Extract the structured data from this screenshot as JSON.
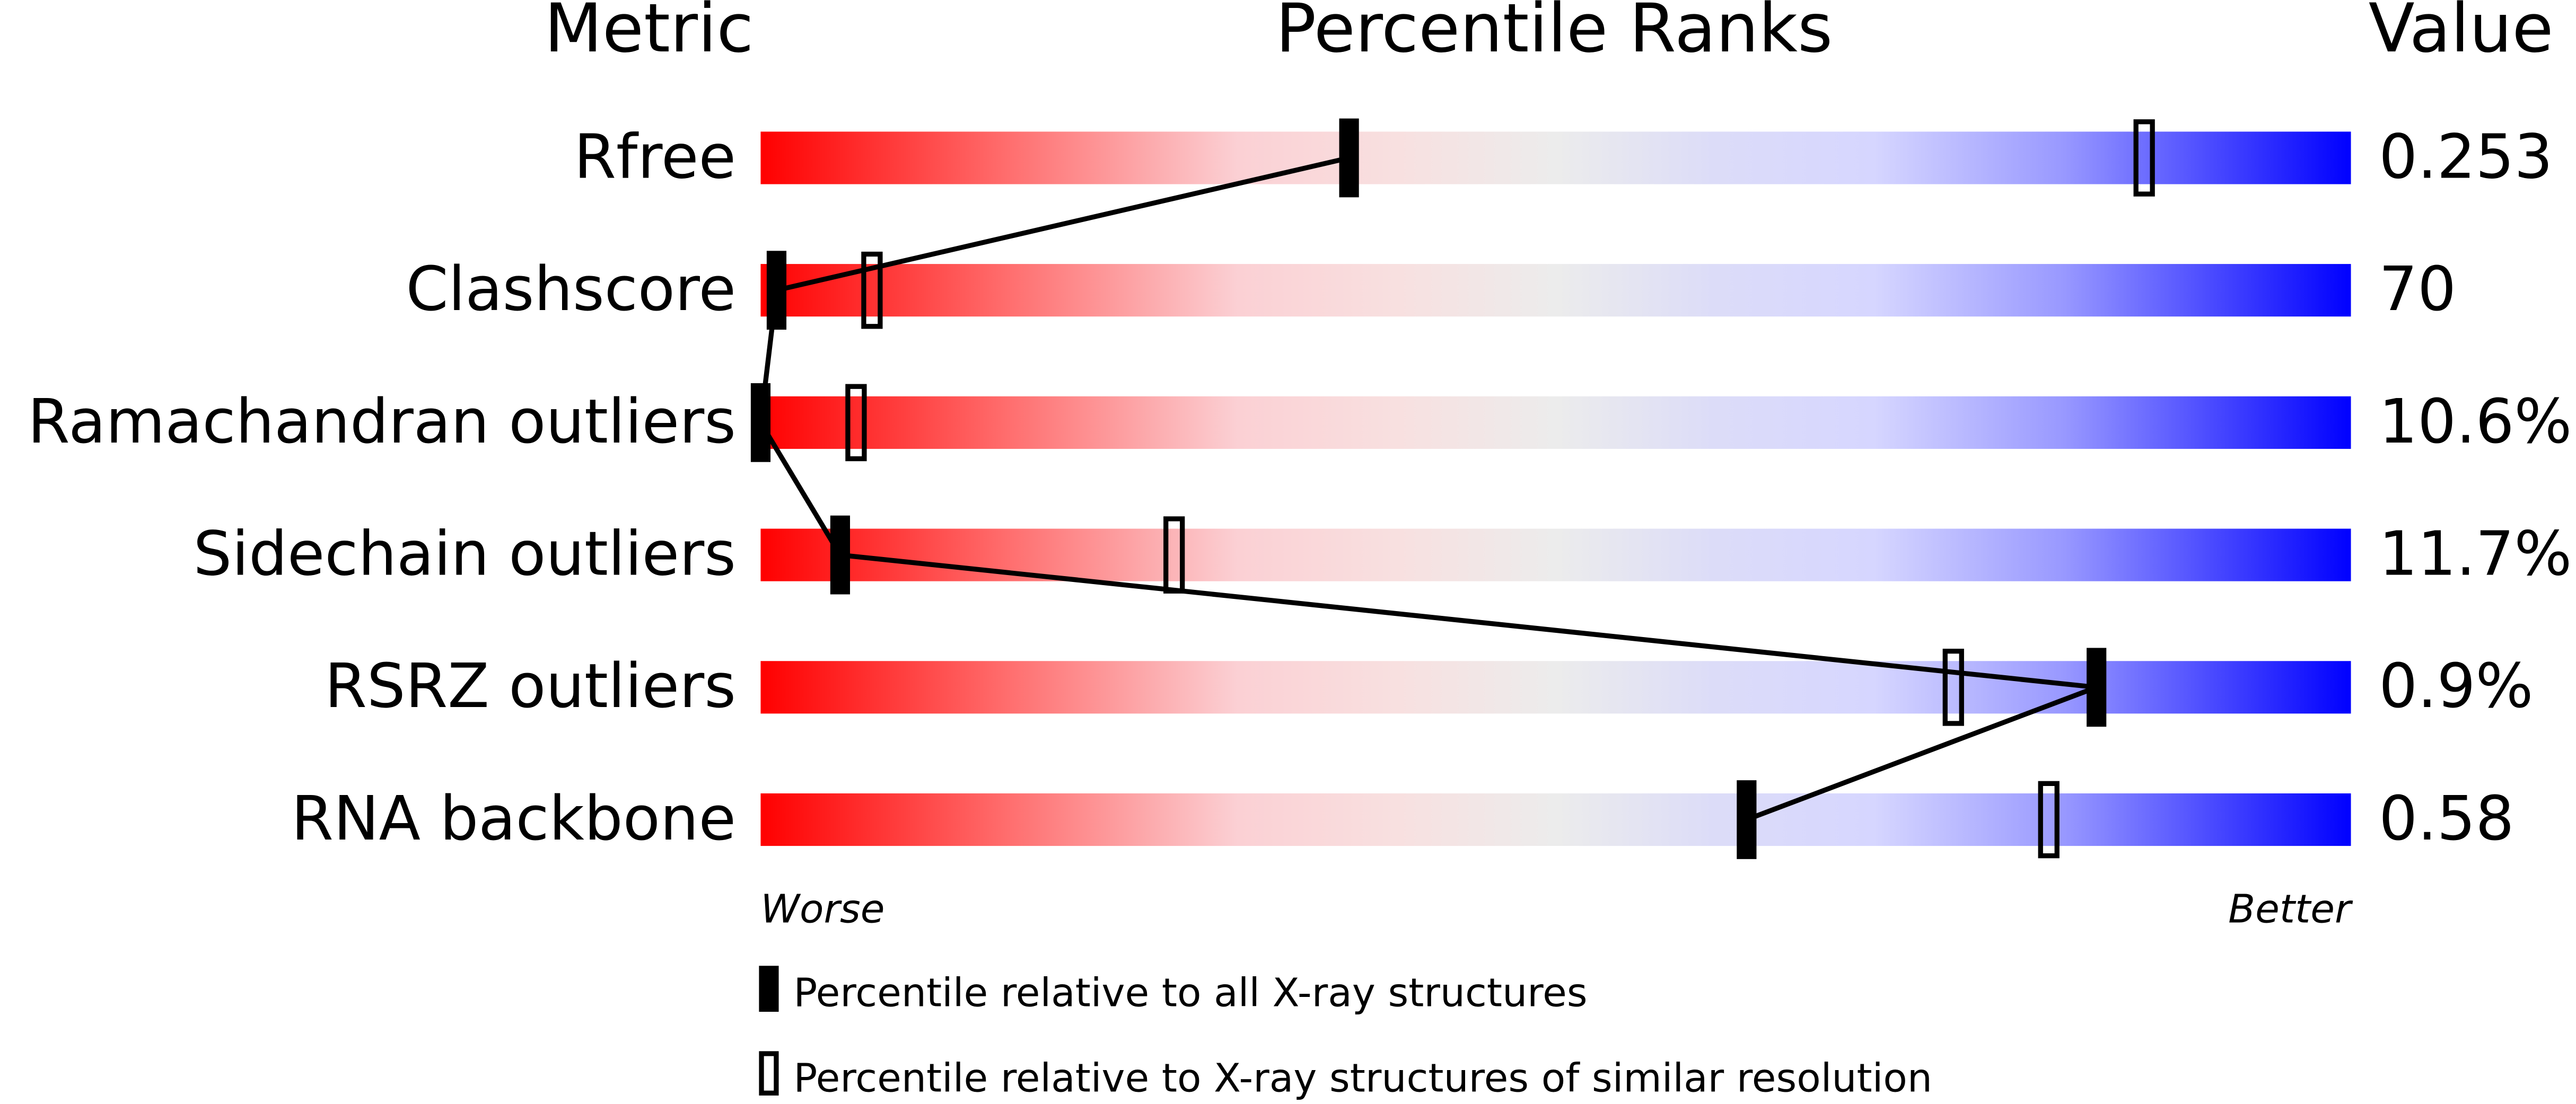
{
  "chart_data": {
    "type": "slider",
    "title": "Percentile Ranks",
    "metric_header": "Metric",
    "value_header": "Value",
    "categories": [
      "Rfree",
      "Clashscore",
      "Ramachandran outliers",
      "Sidechain outliers",
      "RSRZ outliers",
      "RNA backbone"
    ],
    "metric_values": [
      "0.253",
      "70",
      "10.6%",
      "11.7%",
      "0.9%",
      "0.58"
    ],
    "xlim": [
      0,
      100
    ],
    "x_start_label": "Worse",
    "x_end_label": "Better",
    "series": [
      {
        "name": "Percentile relative to all X-ray structures",
        "color": "#000000",
        "values": [
          37,
          1,
          0,
          5,
          84,
          62
        ]
      },
      {
        "name": "Percentile relative to X-ray structures of similar resolution",
        "color": "#000000",
        "values": [
          87,
          7,
          6,
          26,
          75,
          81
        ]
      }
    ]
  }
}
